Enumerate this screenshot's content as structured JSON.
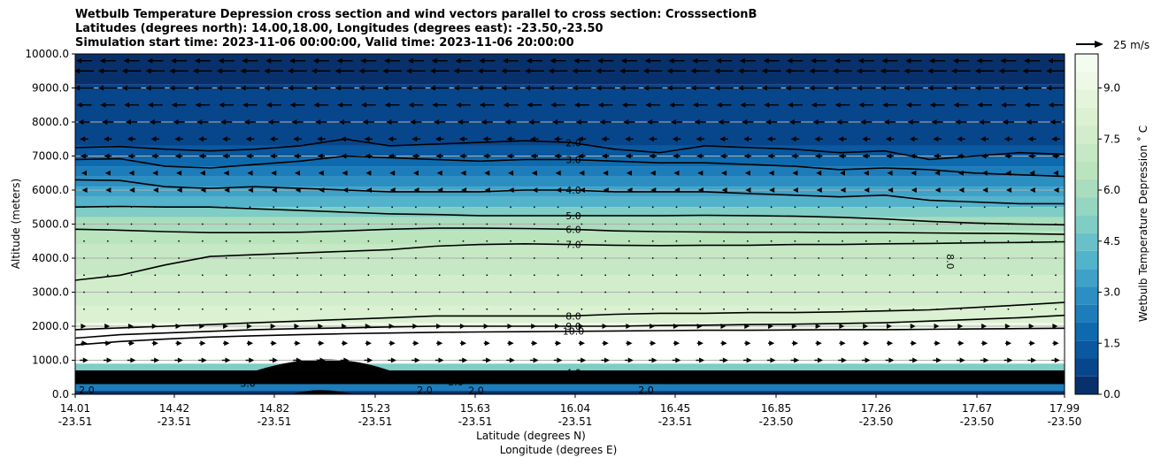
{
  "chart_data": {
    "type": "contour",
    "title_lines": [
      "Wetbulb Temperature Depression cross section and wind vectors parallel to cross section: CrosssectionB",
      "Latitudes (degrees north): 14.00,18.00, Longitudes (degrees east): -23.50,-23.50",
      "Simulation start time: 2023-11-06 00:00:00, Valid time: 2023-11-06 20:00:00"
    ],
    "ylabel": "Altitude (meters)",
    "xlabel_lat": "Latitude (degrees N)",
    "xlabel_lon": "Longitude (degrees E)",
    "ylim": [
      0,
      10000
    ],
    "y_ticks": [
      "0.0",
      "1000.0",
      "2000.0",
      "3000.0",
      "4000.0",
      "5000.0",
      "6000.0",
      "7000.0",
      "8000.0",
      "9000.0",
      "10000.0"
    ],
    "x_ticks": [
      {
        "lat": "14.01",
        "lon": "-23.51"
      },
      {
        "lat": "14.42",
        "lon": "-23.51"
      },
      {
        "lat": "14.82",
        "lon": "-23.51"
      },
      {
        "lat": "15.23",
        "lon": "-23.51"
      },
      {
        "lat": "15.63",
        "lon": "-23.51"
      },
      {
        "lat": "16.04",
        "lon": "-23.51"
      },
      {
        "lat": "16.45",
        "lon": "-23.51"
      },
      {
        "lat": "16.85",
        "lon": "-23.50"
      },
      {
        "lat": "17.26",
        "lon": "-23.50"
      },
      {
        "lat": "17.67",
        "lon": "-23.50"
      },
      {
        "lat": "17.99",
        "lon": "-23.50"
      }
    ],
    "colorbar": {
      "label": "Wetbulb Temperature Depression $^\\circ$C",
      "label_display": "Wetbulb Temperature Depression ˚ C",
      "range": [
        0,
        10
      ],
      "ticks": [
        "0.0",
        "1.5",
        "3.0",
        "4.5",
        "6.0",
        "7.5",
        "9.0"
      ],
      "colors": [
        "#08306b",
        "#08468c",
        "#0a589f",
        "#0e6aae",
        "#1c7dba",
        "#2b8fc2",
        "#3ea2c8",
        "#52b3cb",
        "#68c1c9",
        "#7fcdc4",
        "#95d6c0",
        "#a9ddbd",
        "#bae4bc",
        "#c6e8c4",
        "#d1edcb",
        "#dbf1d2",
        "#e4f5dc",
        "#edf8e6",
        "#f4fbef"
      ]
    },
    "quiver_key": {
      "label": "25 m/s"
    },
    "contour_labels": [
      "2.0",
      "3.0",
      "4.0",
      "5.0",
      "6.0",
      "7.0",
      "8.0",
      "9.0",
      "10.0",
      "8.0",
      "2.0",
      "3.0",
      "4.0",
      "2.0",
      "3.0",
      "2.0",
      "2.0",
      "2.0"
    ],
    "contour_levels": [
      {
        "value": 2.0,
        "alt_m": [
          7250,
          7280,
          7200,
          7150,
          7200,
          7300,
          7500,
          7300,
          7350,
          7400,
          7450,
          7400,
          7200,
          7100,
          7300,
          7250,
          7200,
          7100,
          7150,
          6900,
          7000,
          7100,
          7050
        ]
      },
      {
        "value": 3.0,
        "alt_m": [
          6900,
          6920,
          6700,
          6650,
          6750,
          6850,
          7000,
          6950,
          6900,
          6850,
          6900,
          6900,
          6850,
          6800,
          6800,
          6750,
          6700,
          6600,
          6650,
          6600,
          6500,
          6450,
          6400
        ]
      },
      {
        "value": 4.0,
        "alt_m": [
          6300,
          6280,
          6100,
          6050,
          6100,
          6050,
          6000,
          5950,
          5950,
          5950,
          6000,
          6000,
          5950,
          5950,
          5950,
          5900,
          5850,
          5800,
          5850,
          5700,
          5650,
          5600,
          5600
        ]
      },
      {
        "value": 5.0,
        "alt_m": [
          5500,
          5520,
          5500,
          5500,
          5450,
          5400,
          5350,
          5300,
          5280,
          5250,
          5250,
          5250,
          5250,
          5250,
          5260,
          5250,
          5230,
          5200,
          5150,
          5080,
          5030,
          5000,
          4980
        ]
      },
      {
        "value": 6.0,
        "alt_m": [
          4850,
          4820,
          4780,
          4750,
          4750,
          4760,
          4800,
          4850,
          4880,
          4880,
          4870,
          4850,
          4800,
          4780,
          4770,
          4760,
          4760,
          4750,
          4750,
          4740,
          4730,
          4720,
          4700
        ]
      },
      {
        "value": 7.0,
        "alt_m": [
          3350,
          3500,
          3800,
          4050,
          4100,
          4150,
          4200,
          4250,
          4350,
          4400,
          4420,
          4400,
          4380,
          4370,
          4380,
          4380,
          4400,
          4400,
          4420,
          4430,
          4450,
          4460,
          4480
        ]
      },
      {
        "value": 8.0,
        "alt_m": [
          1900,
          1950,
          2000,
          2050,
          2100,
          2150,
          2200,
          2250,
          2300,
          2300,
          2300,
          2300,
          2350,
          2380,
          2380,
          2400,
          2400,
          2420,
          2450,
          2480,
          2550,
          2620,
          2700
        ]
      },
      {
        "value": 9.0,
        "alt_m": [
          1650,
          1750,
          1800,
          1850,
          1900,
          1930,
          1950,
          1980,
          2000,
          2000,
          2000,
          2000,
          2000,
          2020,
          2030,
          2050,
          2060,
          2080,
          2100,
          2150,
          2200,
          2250,
          2320
        ]
      },
      {
        "value": 10.0,
        "alt_m": [
          1450,
          1550,
          1620,
          1680,
          1720,
          1750,
          1780,
          1800,
          1820,
          1830,
          1840,
          1850,
          1860,
          1870,
          1880,
          1880,
          1890,
          1900,
          1900,
          1910,
          1920,
          1930,
          1940
        ]
      }
    ],
    "field_bands": [
      {
        "bottom_m": 9100,
        "top_m": 10000,
        "value": 0.1
      },
      {
        "bottom_m": 7300,
        "top_m": 9100,
        "value": 0.6
      },
      {
        "bottom_m": 7000,
        "top_m": 7300,
        "value": 1.2
      },
      {
        "bottom_m": 6700,
        "top_m": 7000,
        "value": 1.9
      },
      {
        "bottom_m": 6400,
        "top_m": 6700,
        "value": 2.4
      },
      {
        "bottom_m": 6100,
        "top_m": 6400,
        "value": 2.9
      },
      {
        "bottom_m": 5800,
        "top_m": 6100,
        "value": 3.5
      },
      {
        "bottom_m": 5500,
        "top_m": 5800,
        "value": 4.2
      },
      {
        "bottom_m": 5200,
        "top_m": 5500,
        "value": 5.0
      },
      {
        "bottom_m": 4800,
        "top_m": 5200,
        "value": 5.8
      },
      {
        "bottom_m": 4400,
        "top_m": 4800,
        "value": 6.6
      },
      {
        "bottom_m": 3500,
        "top_m": 4400,
        "value": 7.3
      },
      {
        "bottom_m": 2600,
        "top_m": 3500,
        "value": 7.8
      },
      {
        "bottom_m": 2100,
        "top_m": 2600,
        "value": 8.4
      },
      {
        "bottom_m": 1900,
        "top_m": 2100,
        "value": 9.4
      },
      {
        "bottom_m": 900,
        "top_m": 1900,
        "value": 10.5
      },
      {
        "bottom_m": 700,
        "top_m": 900,
        "value": 5.0
      },
      {
        "bottom_m": 300,
        "top_m": 700,
        "value": 0.8
      },
      {
        "bottom_m": 100,
        "top_m": 300,
        "value": 2.4
      },
      {
        "bottom_m": 0,
        "top_m": 100,
        "value": 0.5
      }
    ],
    "wind_rows": [
      {
        "alt_m": 9800,
        "u": -15
      },
      {
        "alt_m": 9500,
        "u": -18
      },
      {
        "alt_m": 9000,
        "u": -18
      },
      {
        "alt_m": 8500,
        "u": -14
      },
      {
        "alt_m": 8000,
        "u": -11
      },
      {
        "alt_m": 7500,
        "u": -8
      },
      {
        "alt_m": 7000,
        "u": -7
      },
      {
        "alt_m": 6500,
        "u": -5
      },
      {
        "alt_m": 6000,
        "u": -4
      },
      {
        "alt_m": 5500,
        "u": -2
      },
      {
        "alt_m": 5000,
        "u": -1
      },
      {
        "alt_m": 4500,
        "u": 0.5
      },
      {
        "alt_m": 4000,
        "u": 0.5
      },
      {
        "alt_m": 3500,
        "u": 0.5
      },
      {
        "alt_m": 3000,
        "u": 0.5
      },
      {
        "alt_m": 2500,
        "u": 2
      },
      {
        "alt_m": 2000,
        "u": 4
      },
      {
        "alt_m": 1500,
        "u": 6
      },
      {
        "alt_m": 1000,
        "u": 8
      },
      {
        "alt_m": 500,
        "u": 6
      }
    ]
  }
}
